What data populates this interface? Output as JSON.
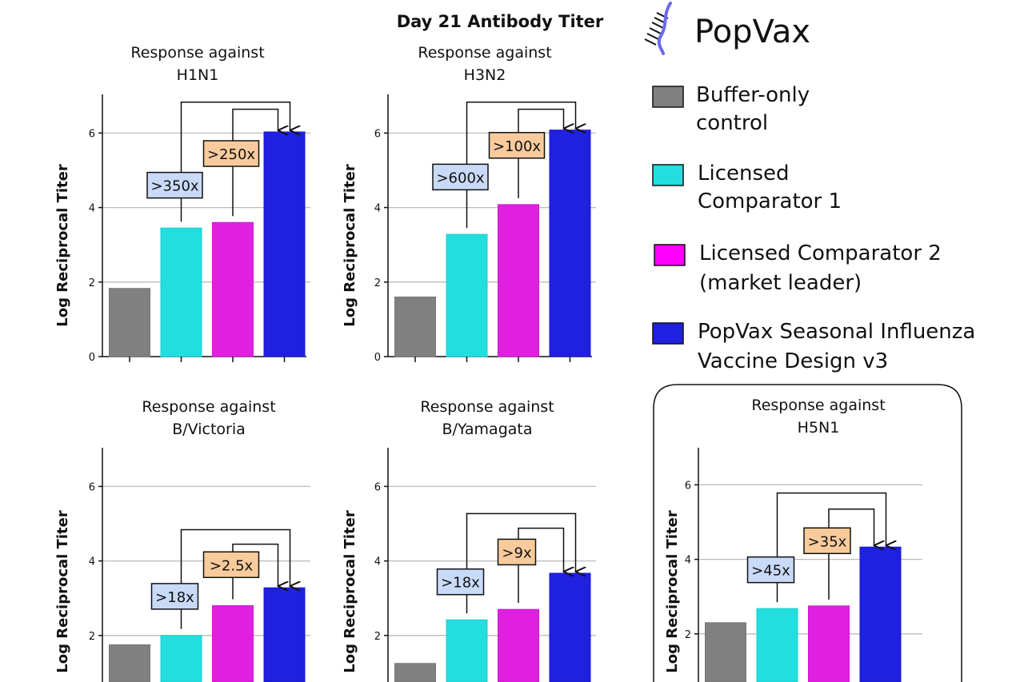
{
  "logo": {
    "text": "PopVax"
  },
  "main_title": "Day 21 Antibody Titer",
  "legend": [
    {
      "lines": [
        "Buffer-only",
        "control"
      ],
      "color": "#808080"
    },
    {
      "lines": [
        "Licensed",
        "Comparator 1"
      ],
      "color": "#22dede"
    },
    {
      "lines": [
        "Licensed Comparator 2",
        "(market leader)"
      ],
      "color": "#e020e0"
    },
    {
      "lines": [
        "PopVax Seasonal Influenza",
        "Vaccine Design v3"
      ],
      "color": "#2020e0"
    }
  ],
  "colors": {
    "label_blue": "#c9daf8",
    "label_orange": "#f9cb9c",
    "grid": "#bbbbbb"
  },
  "chart_data": [
    {
      "type": "bar",
      "title": [
        "Response against",
        "H1N1"
      ],
      "ylabel": "Log Reciprocal Titer",
      "ylim": [
        0,
        7
      ],
      "yticks": [
        "0",
        "2",
        "4",
        "6"
      ],
      "categories": [
        "Buffer-only control",
        "Licensed Comparator 1",
        "Licensed Comparator 2 (market leader)",
        "PopVax Seasonal Influenza Vaccine Design v3"
      ],
      "values": [
        1.83,
        3.45,
        3.6,
        6.03
      ],
      "annotations": [
        {
          "text": ">350x",
          "from": 1,
          "style": "blue",
          "label_y": 4.6,
          "bracket_y": 6.83
        },
        {
          "text": ">250x",
          "from": 2,
          "style": "orange",
          "label_y": 5.45,
          "bracket_y": 6.64
        }
      ]
    },
    {
      "type": "bar",
      "title": [
        "Response against",
        "H3N2"
      ],
      "ylabel": "Log Reciprocal Titer",
      "ylim": [
        0,
        7
      ],
      "yticks": [
        "0",
        "2",
        "4",
        "6"
      ],
      "categories": [
        "Buffer-only control",
        "Licensed Comparator 1",
        "Licensed Comparator 2 (market leader)",
        "PopVax Seasonal Influenza Vaccine Design v3"
      ],
      "values": [
        1.6,
        3.28,
        4.08,
        6.08
      ],
      "annotations": [
        {
          "text": ">600x",
          "from": 1,
          "style": "blue",
          "label_y": 4.82,
          "bracket_y": 6.83
        },
        {
          "text": ">100x",
          "from": 2,
          "style": "orange",
          "label_y": 5.67,
          "bracket_y": 6.64
        }
      ]
    },
    {
      "type": "bar",
      "title": [
        "Response against",
        "B/Victoria"
      ],
      "ylabel": "Log Reciprocal Titer",
      "ylim": [
        0,
        7
      ],
      "yticks": [
        "2",
        "4",
        "6"
      ],
      "categories": [
        "Buffer-only control",
        "Licensed Comparator 1",
        "Licensed Comparator 2 (market leader)",
        "PopVax Seasonal Influenza Vaccine Design v3"
      ],
      "values": [
        1.75,
        2.0,
        2.8,
        3.28
      ],
      "annotations": [
        {
          "text": ">18x",
          "from": 1,
          "style": "blue",
          "label_y": 3.05,
          "bracket_y": 4.84
        },
        {
          "text": ">2.5x",
          "from": 2,
          "style": "orange",
          "label_y": 3.9,
          "bracket_y": 4.45
        }
      ]
    },
    {
      "type": "bar",
      "title": [
        "Response against",
        "B/Yamagata"
      ],
      "ylabel": "Log Reciprocal Titer",
      "ylim": [
        0,
        7
      ],
      "yticks": [
        "2",
        "4",
        "6"
      ],
      "categories": [
        "Buffer-only control",
        "Licensed Comparator 1",
        "Licensed Comparator 2 (market leader)",
        "PopVax Seasonal Influenza Vaccine Design v3"
      ],
      "values": [
        1.25,
        2.42,
        2.7,
        3.67
      ],
      "annotations": [
        {
          "text": ">18x",
          "from": 1,
          "style": "blue",
          "label_y": 3.44,
          "bracket_y": 5.27
        },
        {
          "text": ">9x",
          "from": 2,
          "style": "orange",
          "label_y": 4.24,
          "bracket_y": 4.88
        }
      ]
    },
    {
      "type": "bar",
      "title": [
        "Response against",
        "H5N1"
      ],
      "ylabel": "Log Reciprocal Titer",
      "ylim": [
        0,
        7
      ],
      "yticks": [
        "2",
        "4",
        "6"
      ],
      "categories": [
        "Buffer-only control",
        "Licensed Comparator 1",
        "Licensed Comparator 2 (market leader)",
        "PopVax Seasonal Influenza Vaccine Design v3"
      ],
      "values": [
        2.3,
        2.68,
        2.75,
        4.33
      ],
      "annotations": [
        {
          "text": ">45x",
          "from": 1,
          "style": "blue",
          "label_y": 3.72,
          "bracket_y": 5.78
        },
        {
          "text": ">35x",
          "from": 2,
          "style": "orange",
          "label_y": 4.5,
          "bracket_y": 5.35
        }
      ]
    }
  ]
}
